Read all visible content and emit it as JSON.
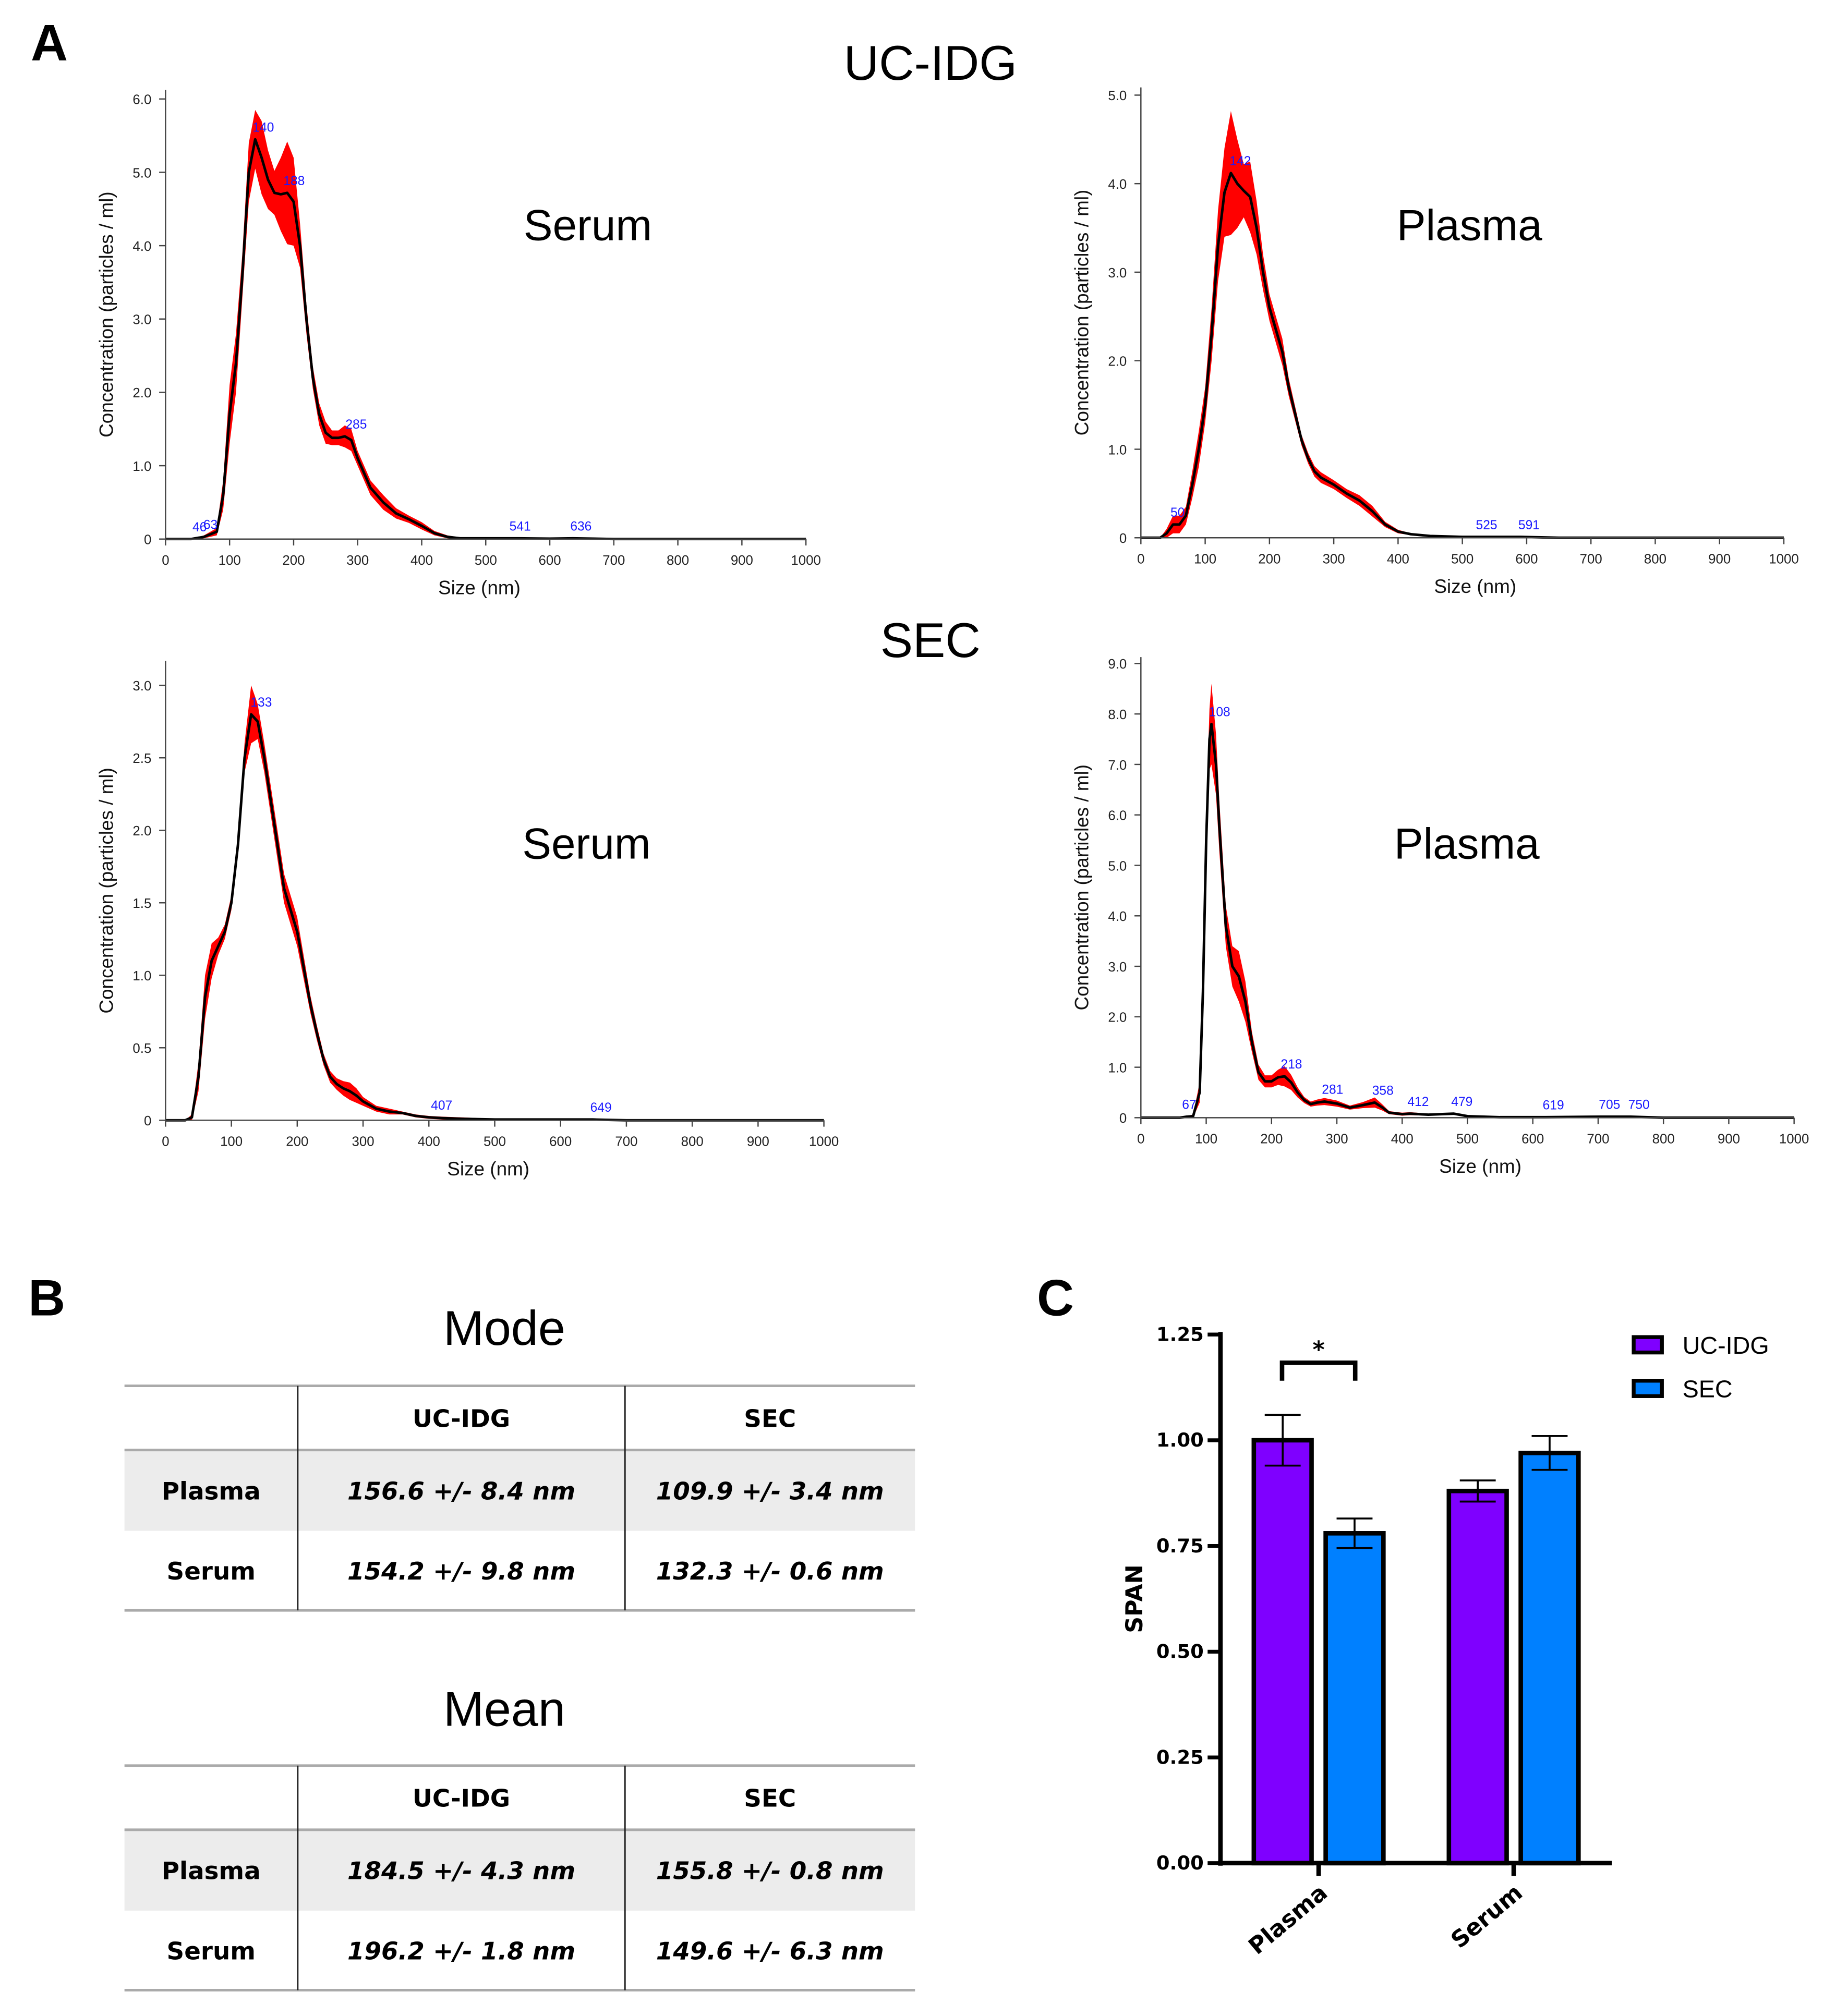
{
  "panels": {
    "a": "A",
    "b": "B",
    "c": "C"
  },
  "groups": {
    "uc": "UC-IDG",
    "sec": "SEC"
  },
  "colors": {
    "band": "#ff0000",
    "line": "#000000",
    "peak_label": "#1a1aff",
    "uc_bar": "#7f00ff",
    "sec_bar": "#0080ff",
    "table_shade": "#ececec"
  },
  "chart_data": [
    {
      "type": "line",
      "group": "UC-IDG",
      "sample_label": "Serum",
      "xlabel": "Size (nm)",
      "ylabel": "Concentration (particles / ml)",
      "xlim": [
        0,
        1000
      ],
      "ylim": [
        0,
        6.0
      ],
      "xticks": [
        "0",
        "100",
        "200",
        "300",
        "400",
        "500",
        "600",
        "700",
        "800",
        "900",
        "1000"
      ],
      "yticks": [
        "0",
        "1.0",
        "2.0",
        "3.0",
        "4.0",
        "5.0",
        "6.0"
      ],
      "x": [
        0,
        40,
        60,
        80,
        90,
        100,
        110,
        120,
        130,
        140,
        150,
        160,
        170,
        180,
        190,
        200,
        210,
        220,
        230,
        240,
        250,
        260,
        270,
        280,
        290,
        300,
        320,
        340,
        360,
        380,
        400,
        420,
        440,
        460,
        480,
        500,
        550,
        600,
        636,
        700,
        1000
      ],
      "y": [
        0,
        0,
        0.03,
        0.1,
        0.6,
        1.7,
        2.4,
        3.6,
        5.0,
        5.45,
        5.2,
        4.9,
        4.72,
        4.7,
        4.72,
        4.6,
        4.0,
        3.0,
        2.2,
        1.7,
        1.45,
        1.38,
        1.38,
        1.4,
        1.35,
        1.1,
        0.7,
        0.5,
        0.35,
        0.27,
        0.18,
        0.08,
        0.03,
        0.01,
        0.01,
        0.01,
        0.01,
        0.005,
        0.01,
        0,
        0
      ],
      "err": [
        0,
        0,
        0.02,
        0.05,
        0.2,
        0.4,
        0.4,
        0.3,
        0.4,
        0.4,
        0.5,
        0.4,
        0.3,
        0.5,
        0.7,
        0.6,
        0.3,
        0.2,
        0.15,
        0.15,
        0.15,
        0.1,
        0.1,
        0.15,
        0.15,
        0.1,
        0.1,
        0.1,
        0.07,
        0.05,
        0.05,
        0.03,
        0.02,
        0.01,
        0.01,
        0.01,
        0.01,
        0.01,
        0.01,
        0,
        0
      ],
      "peaks": [
        {
          "x": 46,
          "label": "46"
        },
        {
          "x": 63,
          "label": "63"
        },
        {
          "x": 140,
          "label": "140"
        },
        {
          "x": 188,
          "label": "188"
        },
        {
          "x": 285,
          "label": "285"
        },
        {
          "x": 541,
          "label": "541"
        },
        {
          "x": 636,
          "label": "636"
        }
      ]
    },
    {
      "type": "line",
      "group": "UC-IDG",
      "sample_label": "Plasma",
      "xlabel": "Size (nm)",
      "ylabel": "Concentration (particles / ml)",
      "xlim": [
        0,
        1000
      ],
      "ylim": [
        0,
        5.0
      ],
      "xticks": [
        "0",
        "100",
        "200",
        "300",
        "400",
        "500",
        "600",
        "700",
        "800",
        "900",
        "1000"
      ],
      "yticks": [
        "0",
        "1.0",
        "2.0",
        "3.0",
        "4.0",
        "5.0"
      ],
      "x": [
        0,
        30,
        40,
        50,
        60,
        70,
        80,
        90,
        100,
        110,
        120,
        130,
        140,
        150,
        160,
        170,
        180,
        190,
        200,
        210,
        220,
        230,
        240,
        250,
        260,
        270,
        280,
        300,
        320,
        340,
        360,
        380,
        400,
        420,
        450,
        500,
        525,
        591,
        650,
        1000
      ],
      "y": [
        0,
        0,
        0.05,
        0.15,
        0.15,
        0.25,
        0.6,
        1.0,
        1.5,
        2.3,
        3.3,
        3.9,
        4.12,
        4.0,
        3.92,
        3.85,
        3.5,
        3.0,
        2.6,
        2.35,
        2.1,
        1.7,
        1.4,
        1.1,
        0.9,
        0.75,
        0.68,
        0.6,
        0.5,
        0.42,
        0.3,
        0.15,
        0.07,
        0.04,
        0.02,
        0.01,
        0.01,
        0.01,
        0,
        0
      ],
      "err": [
        0,
        0,
        0.05,
        0.1,
        0.1,
        0.1,
        0.15,
        0.2,
        0.2,
        0.3,
        0.4,
        0.5,
        0.7,
        0.5,
        0.3,
        0.4,
        0.3,
        0.2,
        0.15,
        0.15,
        0.15,
        0.1,
        0.08,
        0.06,
        0.06,
        0.06,
        0.06,
        0.05,
        0.05,
        0.06,
        0.06,
        0.03,
        0.02,
        0.01,
        0.01,
        0.01,
        0.01,
        0.01,
        0,
        0
      ],
      "peaks": [
        {
          "x": 50,
          "label": "50"
        },
        {
          "x": 142,
          "label": "142"
        },
        {
          "x": 525,
          "label": "525"
        },
        {
          "x": 591,
          "label": "591"
        }
      ]
    },
    {
      "type": "line",
      "group": "SEC",
      "sample_label": "Serum",
      "xlabel": "Size (nm)",
      "ylabel": "Concentration (particles / ml)",
      "xlim": [
        0,
        1000
      ],
      "ylim": [
        0,
        3.0
      ],
      "xticks": [
        "0",
        "100",
        "200",
        "300",
        "400",
        "500",
        "600",
        "700",
        "800",
        "900",
        "1000"
      ],
      "yticks": [
        "0",
        "0.5",
        "1.0",
        "1.5",
        "2.0",
        "2.5",
        "3.0"
      ],
      "x": [
        0,
        30,
        40,
        50,
        60,
        70,
        80,
        90,
        100,
        110,
        120,
        130,
        140,
        150,
        160,
        170,
        180,
        190,
        200,
        210,
        220,
        230,
        240,
        250,
        260,
        270,
        280,
        290,
        300,
        320,
        340,
        360,
        380,
        400,
        420,
        450,
        500,
        600,
        649,
        700,
        1000
      ],
      "y": [
        0,
        0,
        0.02,
        0.3,
        0.85,
        1.1,
        1.2,
        1.3,
        1.5,
        1.9,
        2.5,
        2.8,
        2.75,
        2.5,
        2.2,
        1.9,
        1.6,
        1.45,
        1.3,
        1.05,
        0.8,
        0.6,
        0.42,
        0.3,
        0.25,
        0.22,
        0.2,
        0.17,
        0.13,
        0.08,
        0.06,
        0.05,
        0.03,
        0.02,
        0.015,
        0.01,
        0.005,
        0.005,
        0.005,
        0,
        0
      ],
      "err": [
        0,
        0,
        0.02,
        0.1,
        0.15,
        0.12,
        0.06,
        0.05,
        0.05,
        0.06,
        0.1,
        0.2,
        0.12,
        0.1,
        0.1,
        0.1,
        0.1,
        0.1,
        0.1,
        0.08,
        0.06,
        0.05,
        0.04,
        0.04,
        0.04,
        0.05,
        0.06,
        0.05,
        0.03,
        0.02,
        0.02,
        0.01,
        0.01,
        0.01,
        0.01,
        0.01,
        0.005,
        0.005,
        0.005,
        0,
        0
      ],
      "peaks": [
        {
          "x": 133,
          "label": "133"
        },
        {
          "x": 407,
          "label": "407"
        },
        {
          "x": 649,
          "label": "649"
        }
      ]
    },
    {
      "type": "line",
      "group": "SEC",
      "sample_label": "Plasma",
      "xlabel": "Size (nm)",
      "ylabel": "Concentration (particles / ml)",
      "xlim": [
        0,
        1000
      ],
      "ylim": [
        0,
        9.0
      ],
      "xticks": [
        "0",
        "100",
        "200",
        "300",
        "400",
        "500",
        "600",
        "700",
        "800",
        "900",
        "1000"
      ],
      "yticks": [
        "0",
        "1.0",
        "2.0",
        "3.0",
        "4.0",
        "5.0",
        "6.0",
        "7.0",
        "8.0",
        "9.0"
      ],
      "x": [
        0,
        60,
        70,
        80,
        90,
        95,
        100,
        105,
        108,
        115,
        120,
        130,
        140,
        150,
        160,
        170,
        180,
        190,
        200,
        210,
        220,
        230,
        240,
        250,
        260,
        270,
        281,
        300,
        320,
        340,
        358,
        370,
        380,
        400,
        412,
        440,
        479,
        500,
        550,
        619,
        705,
        750,
        800,
        1000
      ],
      "y": [
        0,
        0,
        0.02,
        0.03,
        0.5,
        2.5,
        5.5,
        7.5,
        7.8,
        7.0,
        5.8,
        3.8,
        3.0,
        2.8,
        2.3,
        1.5,
        0.9,
        0.72,
        0.72,
        0.8,
        0.82,
        0.7,
        0.5,
        0.35,
        0.27,
        0.3,
        0.32,
        0.28,
        0.2,
        0.25,
        0.3,
        0.2,
        0.1,
        0.07,
        0.08,
        0.06,
        0.08,
        0.03,
        0.01,
        0.01,
        0.02,
        0.02,
        0,
        0
      ],
      "err": [
        0,
        0,
        0.02,
        0.03,
        0.2,
        0.4,
        0.5,
        0.6,
        0.8,
        0.6,
        0.5,
        0.4,
        0.4,
        0.5,
        0.4,
        0.2,
        0.15,
        0.12,
        0.12,
        0.15,
        0.2,
        0.15,
        0.1,
        0.06,
        0.05,
        0.06,
        0.07,
        0.06,
        0.04,
        0.06,
        0.1,
        0.06,
        0.03,
        0.03,
        0.03,
        0.02,
        0.02,
        0.01,
        0.01,
        0.01,
        0.01,
        0.01,
        0,
        0
      ],
      "peaks": [
        {
          "x": 67,
          "label": "67"
        },
        {
          "x": 108,
          "label": "108"
        },
        {
          "x": 218,
          "label": "218"
        },
        {
          "x": 281,
          "label": "281"
        },
        {
          "x": 358,
          "label": "358"
        },
        {
          "x": 412,
          "label": "412"
        },
        {
          "x": 479,
          "label": "479"
        },
        {
          "x": 619,
          "label": "619"
        },
        {
          "x": 705,
          "label": "705"
        },
        {
          "x": 750,
          "label": "750"
        }
      ]
    },
    {
      "type": "bar",
      "ylabel": "SPAN",
      "ylim": [
        0,
        1.25
      ],
      "yticks": [
        "0.00",
        "0.25",
        "0.50",
        "0.75",
        "1.00",
        "1.25"
      ],
      "categories": [
        "Plasma",
        "Serum"
      ],
      "series": [
        {
          "name": "UC-IDG",
          "values": [
            1.0,
            0.88
          ],
          "error": [
            0.06,
            0.025
          ]
        },
        {
          "name": "SEC",
          "values": [
            0.78,
            0.97
          ],
          "error": [
            0.035,
            0.04
          ]
        }
      ],
      "significance": {
        "category": "Plasma",
        "label": "*"
      },
      "legend": "top-right"
    }
  ],
  "tables": [
    {
      "title": "Mode",
      "columns": [
        "",
        "UC-IDG",
        "SEC"
      ],
      "rows": [
        [
          "Plasma",
          "156.6 +/- 8.4 nm",
          "109.9 +/- 3.4 nm"
        ],
        [
          "Serum",
          "154.2 +/- 9.8 nm",
          "132.3 +/- 0.6 nm"
        ]
      ]
    },
    {
      "title": "Mean",
      "columns": [
        "",
        "UC-IDG",
        "SEC"
      ],
      "rows": [
        [
          "Plasma",
          "184.5 +/- 4.3 nm",
          "155.8 +/- 0.8 nm"
        ],
        [
          "Serum",
          "196.2 +/- 1.8 nm",
          "149.6 +/- 6.3 nm"
        ]
      ]
    }
  ]
}
